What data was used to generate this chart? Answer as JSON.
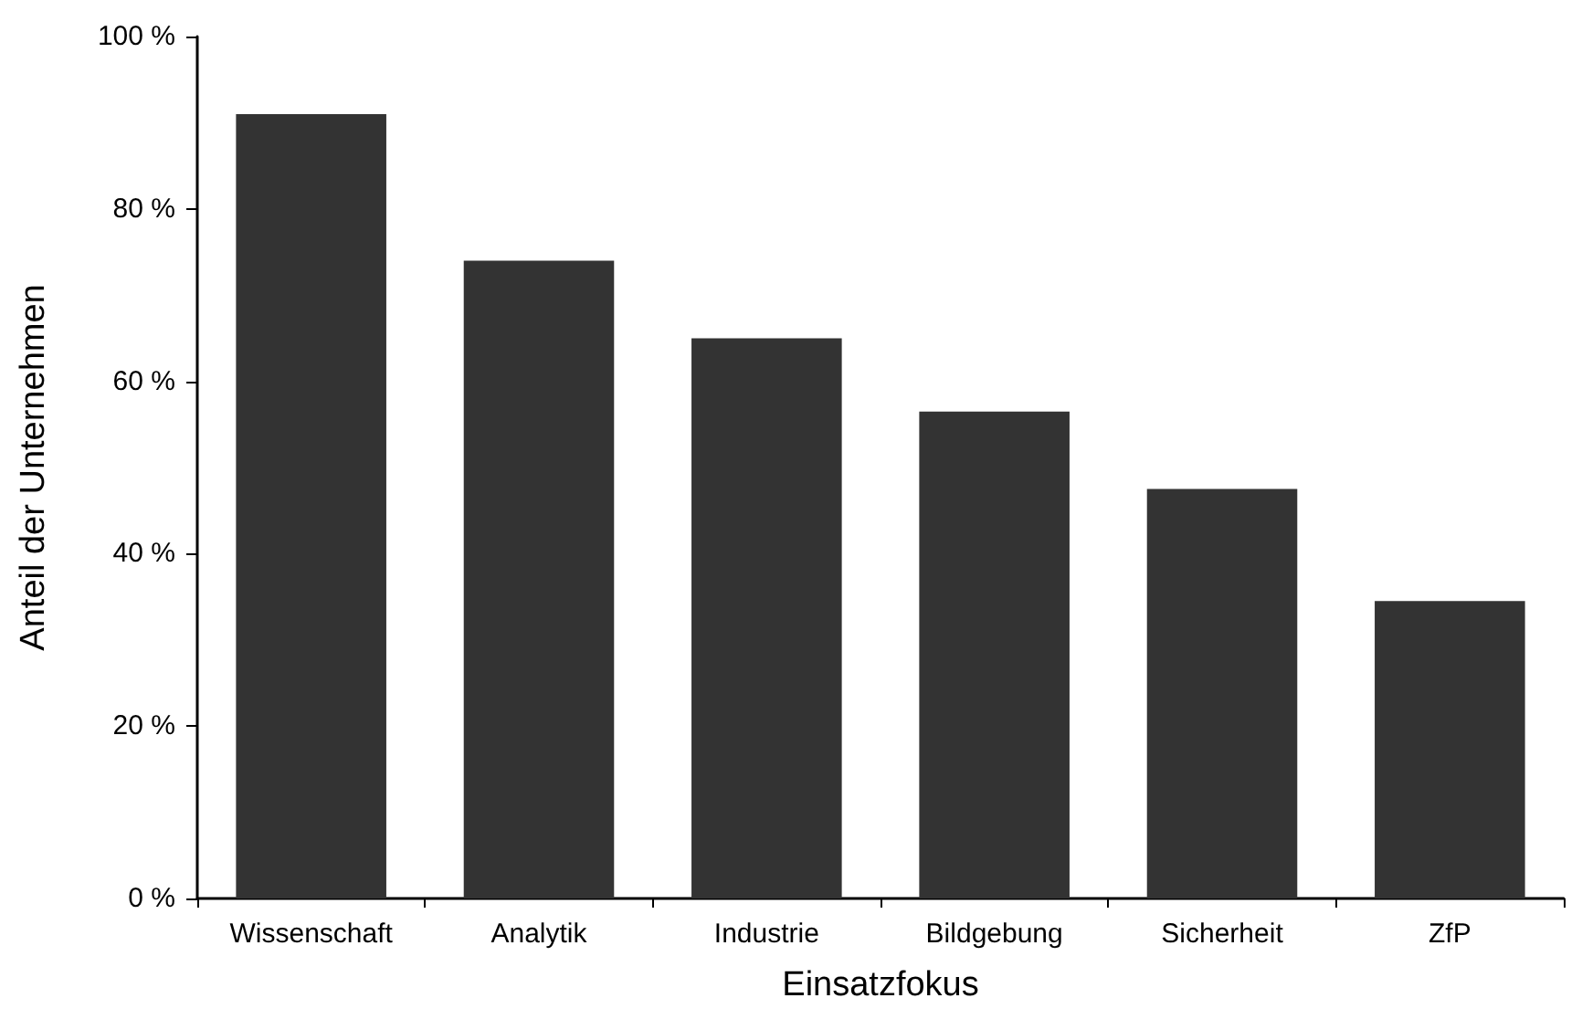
{
  "chart_data": {
    "type": "bar",
    "xlabel": "Einsatzfokus",
    "ylabel": "Anteil der Unternehmen",
    "categories": [
      "Wissenschaft",
      "Analytik",
      "Industrie",
      "Bildgebung",
      "Sicherheit",
      "ZfP"
    ],
    "values": [
      91,
      74,
      65,
      56.5,
      47.5,
      34.5
    ],
    "color": "#333333",
    "ylim": [
      0,
      100
    ],
    "yticks": [
      {
        "value": 0,
        "label": "0 %"
      },
      {
        "value": 20,
        "label": "20 %"
      },
      {
        "value": 40,
        "label": "40 %"
      },
      {
        "value": 60,
        "label": "60 %"
      },
      {
        "value": 80,
        "label": "80 %"
      },
      {
        "value": 100,
        "label": "100 %"
      }
    ],
    "grid": false
  }
}
